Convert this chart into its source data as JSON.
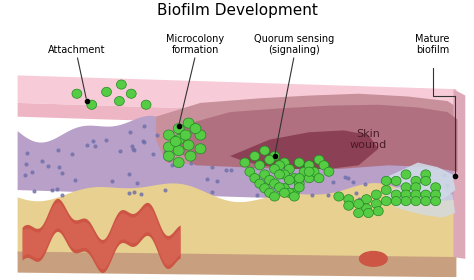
{
  "title": "Biofilm Development",
  "title_fontsize": 11,
  "labels": {
    "attachment": "Attachment",
    "microcolony": "Microcolony\nformation",
    "quorum": "Quorum sensing\n(signaling)",
    "mature": "Mature\nbiofilm",
    "skin_wound": "Skin\nwound"
  },
  "colors": {
    "background": "#ffffff",
    "skin_top_light": "#f7ccd8",
    "skin_top_mid": "#eeb5c5",
    "skin_top_dark": "#e0a0b8",
    "wound_light": "#c8909a",
    "wound_mid": "#b07080",
    "wound_deep": "#8b4055",
    "dermis_purple": "#b8a0c8",
    "dermis_blue": "#9090b8",
    "subdermis_tan": "#e8d090",
    "deep_layer": "#c8a080",
    "blood_vessel_red": "#cc5544",
    "blood_vessel_light": "#e07060",
    "fibrin_white": "#d0dce8",
    "bacteria_green": "#55cc44",
    "bacteria_border": "#228822",
    "dot_color": "#7070aa",
    "annot_line": "#333333"
  },
  "figure_size": [
    4.74,
    2.8
  ],
  "dpi": 100
}
